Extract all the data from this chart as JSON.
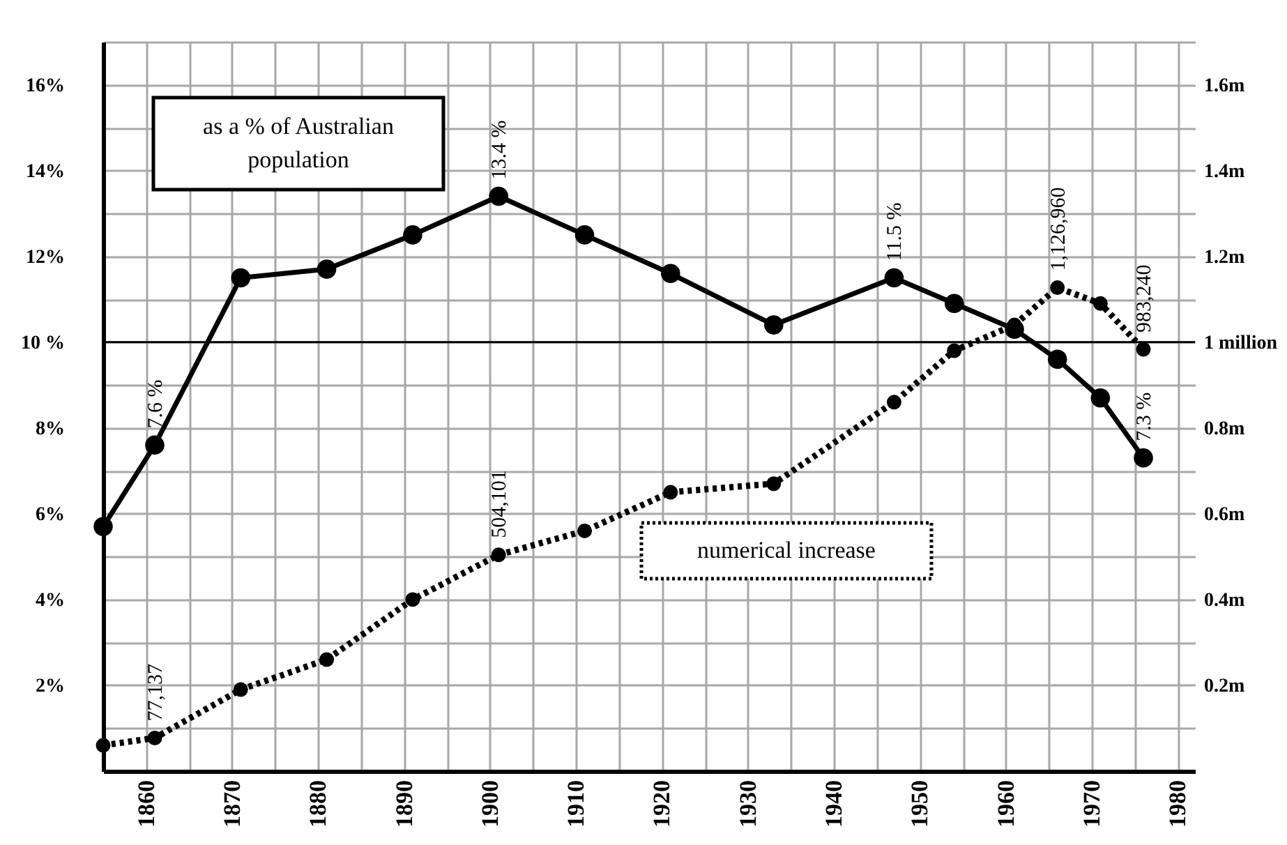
{
  "chart_data": {
    "type": "line",
    "x": [
      1855,
      1861,
      1871,
      1881,
      1891,
      1901,
      1911,
      1921,
      1933,
      1947,
      1954,
      1961,
      1966,
      1971,
      1976
    ],
    "series": [
      {
        "name": "as a % of Australian population",
        "color": "#000000",
        "line_style": "solid",
        "values": [
          5.7,
          7.6,
          11.5,
          11.7,
          12.5,
          13.4,
          12.5,
          11.6,
          10.4,
          11.5,
          10.9,
          10.3,
          9.6,
          8.7,
          7.3
        ],
        "value_labels": [
          null,
          "7.6 %",
          null,
          null,
          null,
          "13.4 %",
          null,
          null,
          null,
          "11.5 %",
          null,
          null,
          null,
          null,
          "7.3 %"
        ]
      },
      {
        "name": "numerical increase",
        "color": "#000000",
        "line_style": "dotted",
        "axis": "y2",
        "values": [
          60000,
          77137,
          190000,
          260000,
          400000,
          504101,
          560000,
          650000,
          670000,
          860000,
          980000,
          1040000,
          1126960,
          1090000,
          983240
        ],
        "value_labels": [
          null,
          "77,137",
          null,
          null,
          null,
          "504,101",
          null,
          null,
          null,
          null,
          null,
          null,
          "1,126,960",
          null,
          "983,240"
        ]
      }
    ],
    "marker": "circle",
    "xlim": [
      1855,
      1982
    ],
    "xticks": [
      {
        "value": 1855,
        "label": null
      },
      1860,
      {
        "value": 1865,
        "label": null
      },
      1870,
      {
        "value": 1875,
        "label": null
      },
      1880,
      {
        "value": 1885,
        "label": null
      },
      1890,
      {
        "value": 1895,
        "label": null
      },
      1900,
      {
        "value": 1905,
        "label": null
      },
      1910,
      {
        "value": 1915,
        "label": null
      },
      1920,
      {
        "value": 1925,
        "label": null
      },
      1930,
      {
        "value": 1935,
        "label": null
      },
      1940,
      {
        "value": 1945,
        "label": null
      },
      1950,
      {
        "value": 1955,
        "label": null
      },
      1960,
      {
        "value": 1965,
        "label": null
      },
      1970,
      {
        "value": 1975,
        "label": null
      },
      1980
    ],
    "ylim": [
      0,
      17
    ],
    "yticks": [
      {
        "value": 1,
        "label": null
      },
      {
        "value": 2,
        "label": "2%"
      },
      {
        "value": 3,
        "label": null
      },
      {
        "value": 4,
        "label": "4%"
      },
      {
        "value": 5,
        "label": null
      },
      {
        "value": 6,
        "label": "6%"
      },
      {
        "value": 7,
        "label": null
      },
      {
        "value": 8,
        "label": "8%"
      },
      {
        "value": 9,
        "label": null
      },
      {
        "value": 10,
        "label": "10 %"
      },
      {
        "value": 11,
        "label": null
      },
      {
        "value": 12,
        "label": "12%"
      },
      {
        "value": 13,
        "label": null
      },
      {
        "value": 14,
        "label": "14%"
      },
      {
        "value": 15,
        "label": null
      },
      {
        "value": 16,
        "label": "16%"
      },
      {
        "value": 17,
        "label": null
      }
    ],
    "y2lim": [
      0,
      1700000
    ],
    "y2ticks": [
      {
        "value": 200000,
        "label": "0.2m"
      },
      {
        "value": 400000,
        "label": "0.4m"
      },
      {
        "value": 600000,
        "label": "0.6m"
      },
      {
        "value": 800000,
        "label": "0.8m"
      },
      {
        "value": 1000000,
        "label": "1 million"
      },
      {
        "value": 1200000,
        "label": "1.2m"
      },
      {
        "value": 1400000,
        "label": "1.4m"
      },
      {
        "value": 1600000,
        "label": "1.6m"
      }
    ],
    "ref_lines": [
      {
        "axis": "y",
        "value": 10,
        "color": "#000000"
      }
    ],
    "grid": true,
    "legend": false
  }
}
